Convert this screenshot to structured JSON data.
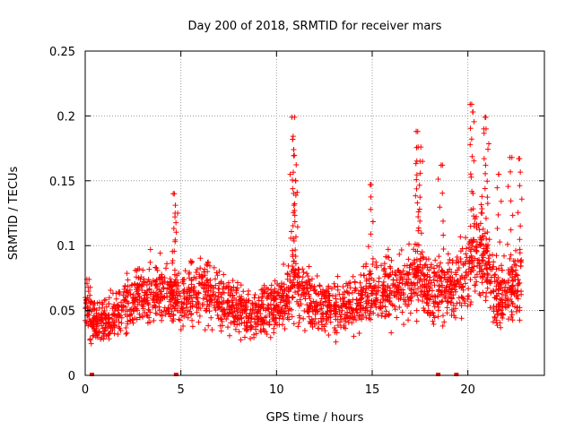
{
  "chart_data": {
    "type": "scatter",
    "title": "Day 200 of 2018, SRMTID for receiver mars",
    "xlabel": "GPS time / hours",
    "ylabel": "SRMTID / TECUs",
    "xlim": [
      0,
      24
    ],
    "ylim": [
      0,
      0.25
    ],
    "xticks": [
      0,
      5,
      10,
      15,
      20
    ],
    "xtick_labels": [
      "0",
      "5",
      "10",
      "15",
      "20"
    ],
    "yticks": [
      0,
      0.05,
      0.1,
      0.15,
      0.2,
      0.25
    ],
    "ytick_labels": [
      "0",
      "0.05",
      "0.1",
      "0.15",
      "0.2",
      "0.25"
    ],
    "grid": true,
    "marker": "+",
    "series": [
      {
        "name": "SRMTID",
        "color": "#ff0000",
        "bands": [
          {
            "x": 0,
            "y": 0.048
          },
          {
            "x": 1,
            "y": 0.04
          },
          {
            "x": 2,
            "y": 0.052
          },
          {
            "x": 3,
            "y": 0.063
          },
          {
            "x": 4,
            "y": 0.064
          },
          {
            "x": 5,
            "y": 0.057
          },
          {
            "x": 6,
            "y": 0.067
          },
          {
            "x": 7,
            "y": 0.06
          },
          {
            "x": 8,
            "y": 0.05
          },
          {
            "x": 9,
            "y": 0.048
          },
          {
            "x": 10,
            "y": 0.054
          },
          {
            "x": 11,
            "y": 0.07
          },
          {
            "x": 12,
            "y": 0.055
          },
          {
            "x": 13,
            "y": 0.052
          },
          {
            "x": 14,
            "y": 0.055
          },
          {
            "x": 15,
            "y": 0.062
          },
          {
            "x": 16,
            "y": 0.068
          },
          {
            "x": 17,
            "y": 0.068
          },
          {
            "x": 17.5,
            "y": 0.082
          },
          {
            "x": 18,
            "y": 0.065
          },
          {
            "x": 19,
            "y": 0.065
          },
          {
            "x": 20,
            "y": 0.08
          },
          {
            "x": 20.5,
            "y": 0.1
          },
          {
            "x": 21,
            "y": 0.085
          },
          {
            "x": 21.5,
            "y": 0.06
          },
          {
            "x": 22,
            "y": 0.065
          },
          {
            "x": 22.8,
            "y": 0.075
          }
        ],
        "spikes": [
          {
            "x": 0.2,
            "y": 0.074
          },
          {
            "x": 4.6,
            "y": 0.14
          },
          {
            "x": 4.7,
            "y": 0.125
          },
          {
            "x": 10.8,
            "y": 0.199
          },
          {
            "x": 10.85,
            "y": 0.182
          },
          {
            "x": 10.9,
            "y": 0.174
          },
          {
            "x": 11.0,
            "y": 0.15
          },
          {
            "x": 14.9,
            "y": 0.147
          },
          {
            "x": 17.3,
            "y": 0.188
          },
          {
            "x": 17.4,
            "y": 0.176
          },
          {
            "x": 17.5,
            "y": 0.165
          },
          {
            "x": 18.6,
            "y": 0.162
          },
          {
            "x": 20.2,
            "y": 0.209
          },
          {
            "x": 20.25,
            "y": 0.203
          },
          {
            "x": 20.9,
            "y": 0.199
          },
          {
            "x": 20.95,
            "y": 0.19
          },
          {
            "x": 21.6,
            "y": 0.155
          },
          {
            "x": 22.2,
            "y": 0.168
          },
          {
            "x": 22.7,
            "y": 0.167
          }
        ],
        "zero_markers": [
          0.35,
          4.75,
          18.45,
          19.4
        ]
      }
    ]
  }
}
